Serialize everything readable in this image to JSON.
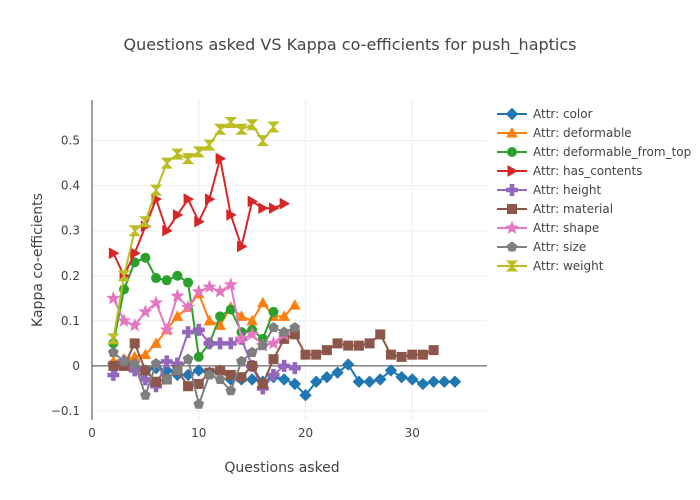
{
  "chart_data": {
    "type": "line",
    "title": "Questions asked VS Kappa co-efficients for push_haptics",
    "xlabel": "Questions asked",
    "ylabel": "Kappa co-efficients",
    "xlim": [
      0,
      37
    ],
    "ylim": [
      -0.12,
      0.59
    ],
    "xticks": [
      0,
      10,
      20,
      30
    ],
    "yticks": [
      -0.1,
      0,
      0.1,
      0.2,
      0.3,
      0.4,
      0.5
    ],
    "grid": true,
    "legend_position": "right",
    "series": [
      {
        "name": "Attr: color",
        "color": "#1f77b4",
        "marker": "diamond",
        "x": [
          2,
          3,
          4,
          5,
          6,
          7,
          8,
          9,
          10,
          11,
          12,
          13,
          14,
          15,
          16,
          17,
          18,
          19,
          20,
          21,
          22,
          23,
          24,
          25,
          26,
          27,
          28,
          29,
          30,
          31,
          32,
          33,
          34
        ],
        "y": [
          0.005,
          0.01,
          -0.005,
          -0.01,
          -0.005,
          -0.01,
          -0.02,
          -0.02,
          -0.01,
          -0.015,
          -0.01,
          -0.03,
          -0.03,
          -0.03,
          -0.035,
          -0.025,
          -0.03,
          -0.04,
          -0.065,
          -0.035,
          -0.025,
          -0.015,
          0.003,
          -0.035,
          -0.035,
          -0.03,
          -0.01,
          -0.025,
          -0.03,
          -0.04,
          -0.035,
          -0.035,
          -0.035
        ]
      },
      {
        "name": "Attr: deformable",
        "color": "#ff7f0e",
        "marker": "triangle-up",
        "x": [
          2,
          3,
          4,
          5,
          6,
          7,
          8,
          9,
          10,
          11,
          12,
          13,
          14,
          15,
          16,
          17,
          18,
          19
        ],
        "y": [
          0.01,
          0.015,
          0.02,
          0.025,
          0.05,
          0.08,
          0.11,
          0.13,
          0.16,
          0.1,
          0.09,
          0.13,
          0.11,
          0.1,
          0.14,
          0.11,
          0.11,
          0.135
        ]
      },
      {
        "name": "Attr: deformable_from_top",
        "color": "#2ca02c",
        "marker": "circle",
        "x": [
          2,
          3,
          4,
          5,
          6,
          7,
          8,
          9,
          10,
          11,
          12,
          13,
          14,
          15,
          16,
          17
        ],
        "y": [
          0.05,
          0.17,
          0.23,
          0.24,
          0.195,
          0.19,
          0.2,
          0.185,
          0.02,
          0.05,
          0.11,
          0.125,
          0.075,
          0.08,
          0.06,
          0.12
        ]
      },
      {
        "name": "Attr: has_contents",
        "color": "#d62728",
        "marker": "triangle-right",
        "x": [
          2,
          3,
          4,
          5,
          6,
          7,
          8,
          9,
          10,
          11,
          12,
          13,
          14,
          15,
          16,
          17,
          18
        ],
        "y": [
          0.25,
          0.2,
          0.25,
          0.31,
          0.37,
          0.3,
          0.335,
          0.37,
          0.32,
          0.37,
          0.46,
          0.335,
          0.265,
          0.365,
          0.35,
          0.35,
          0.36
        ]
      },
      {
        "name": "Attr: height",
        "color": "#9467bd",
        "marker": "cross",
        "x": [
          2,
          3,
          4,
          5,
          6,
          7,
          8,
          9,
          10,
          11,
          12,
          13,
          14,
          15,
          16,
          17,
          18,
          19
        ],
        "y": [
          -0.02,
          0.01,
          -0.01,
          -0.03,
          -0.045,
          0.01,
          0.005,
          0.075,
          0.08,
          0.05,
          0.05,
          0.05,
          0.06,
          0.0,
          -0.05,
          -0.02,
          0.0,
          -0.005
        ]
      },
      {
        "name": "Attr: material",
        "color": "#8c564b",
        "marker": "square",
        "x": [
          2,
          3,
          4,
          5,
          6,
          7,
          8,
          9,
          10,
          11,
          12,
          13,
          14,
          15,
          16,
          17,
          18,
          19,
          20,
          21,
          22,
          23,
          24,
          25,
          26,
          27,
          28,
          29,
          30,
          31,
          32
        ],
        "y": [
          0.0,
          0.0,
          0.05,
          -0.01,
          -0.035,
          -0.03,
          -0.01,
          -0.045,
          -0.04,
          -0.015,
          -0.01,
          -0.02,
          -0.025,
          0.0,
          -0.04,
          0.015,
          0.06,
          0.07,
          0.025,
          0.025,
          0.035,
          0.05,
          0.045,
          0.045,
          0.05,
          0.07,
          0.025,
          0.02,
          0.025,
          0.025,
          0.035
        ]
      },
      {
        "name": "Attr: shape",
        "color": "#e377c2",
        "marker": "star",
        "x": [
          2,
          3,
          4,
          5,
          6,
          7,
          8,
          9,
          10,
          11,
          12,
          13,
          14,
          15,
          16,
          17,
          18
        ],
        "y": [
          0.15,
          0.1,
          0.09,
          0.12,
          0.14,
          0.08,
          0.155,
          0.13,
          0.165,
          0.175,
          0.165,
          0.18,
          0.06,
          0.07,
          0.045,
          0.05,
          0.07
        ]
      },
      {
        "name": "Attr: size",
        "color": "#7f7f7f",
        "marker": "pentagon",
        "x": [
          2,
          3,
          4,
          5,
          6,
          7,
          8,
          9,
          10,
          11,
          12,
          13,
          14,
          15,
          16,
          17,
          18,
          19
        ],
        "y": [
          0.03,
          0.01,
          0.005,
          -0.065,
          0.005,
          -0.03,
          -0.01,
          0.015,
          -0.085,
          -0.02,
          -0.03,
          -0.055,
          0.01,
          0.03,
          0.045,
          0.085,
          0.075,
          0.085
        ]
      },
      {
        "name": "Attr: weight",
        "color": "#bcbd22",
        "marker": "hourglass",
        "x": [
          2,
          3,
          4,
          5,
          6,
          7,
          8,
          9,
          10,
          11,
          12,
          13,
          14,
          15,
          16,
          17
        ],
        "y": [
          0.06,
          0.2,
          0.3,
          0.32,
          0.39,
          0.45,
          0.47,
          0.46,
          0.475,
          0.49,
          0.525,
          0.54,
          0.525,
          0.535,
          0.5,
          0.53
        ]
      }
    ]
  }
}
